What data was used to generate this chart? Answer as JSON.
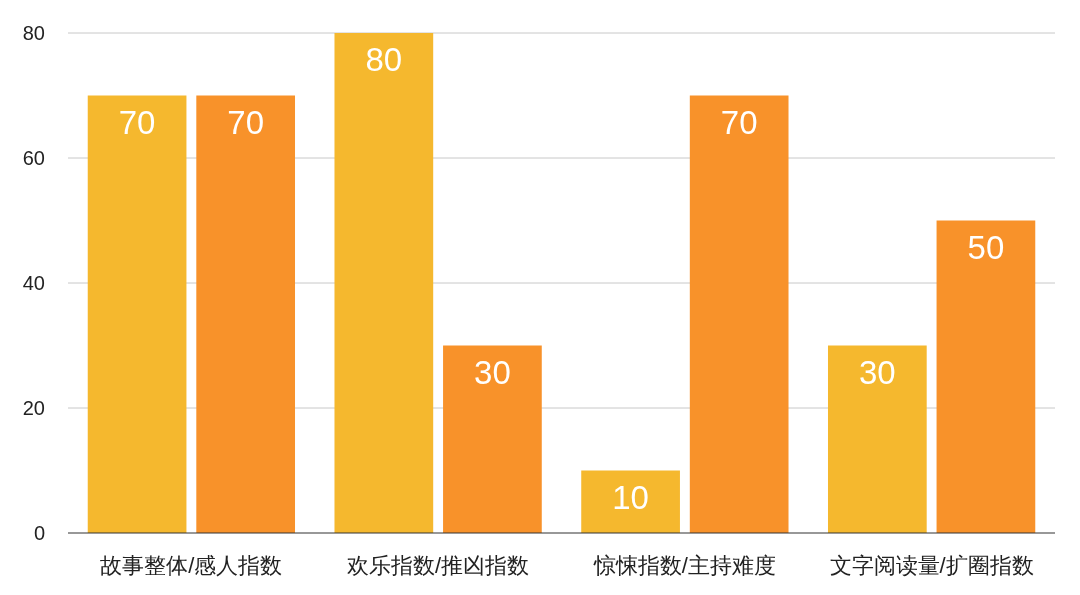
{
  "chart_data": {
    "type": "bar",
    "categories": [
      "故事整体/感人指数",
      "欢乐指数/推凶指数",
      "惊悚指数/主持难度",
      "文字阅读量/扩圈指数"
    ],
    "series": [
      {
        "color": "#f5b82e",
        "values": [
          70,
          80,
          10,
          30
        ]
      },
      {
        "color": "#f8922a",
        "values": [
          70,
          30,
          70,
          50
        ]
      }
    ],
    "ylim": [
      0,
      80
    ],
    "yticks": [
      0,
      20,
      40,
      60,
      80
    ],
    "grid": "y",
    "data_labels": true
  }
}
